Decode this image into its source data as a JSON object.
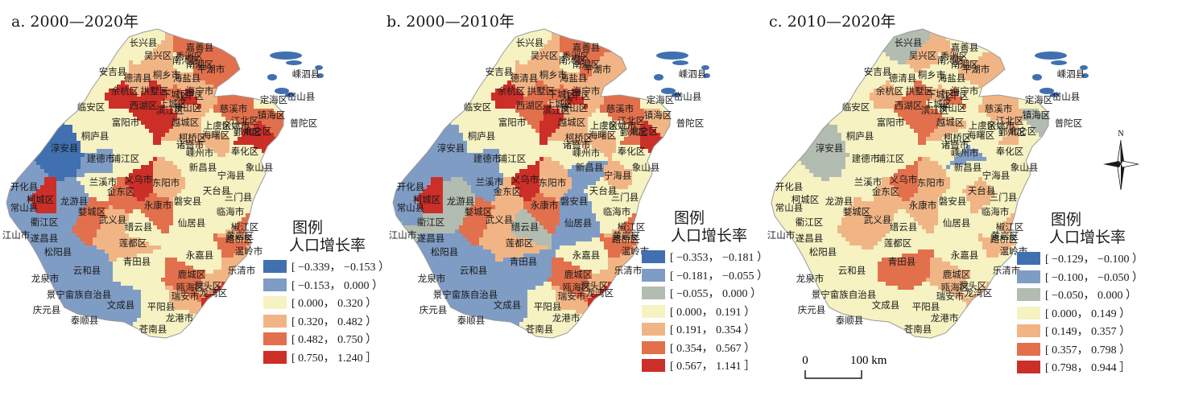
{
  "panels": [
    {
      "id": "a",
      "title": "a. 2000—2020年",
      "legend": {
        "title": "图例",
        "subtitle": "人口增长率",
        "classes": [
          {
            "range": "[ −0.339， −0.153 ）",
            "color": "#4070b0"
          },
          {
            "range": "[ −0.153， 0.000 ）",
            "color": "#7f9cc4"
          },
          {
            "range": "[ 0.000， 0.320 ）",
            "color": "#f6f2c2"
          },
          {
            "range": "[ 0.320， 0.482 ）",
            "color": "#f1b585"
          },
          {
            "range": "[ 0.482， 0.750 ）",
            "color": "#e2704c"
          },
          {
            "range": "[ 0.750， 1.240 ］",
            "color": "#cc2e28"
          }
        ]
      }
    },
    {
      "id": "b",
      "title": "b. 2000—2010年",
      "legend": {
        "title": "图例",
        "subtitle": "人口增长率",
        "classes": [
          {
            "range": "[ −0.353， −0.181 ）",
            "color": "#4070b0"
          },
          {
            "range": "[ −0.181， −0.055 ）",
            "color": "#7f9cc4"
          },
          {
            "range": "[ −0.055， 0.000 ）",
            "color": "#b3bcb0"
          },
          {
            "range": "[ 0.000， 0.191 ）",
            "color": "#f6f2c2"
          },
          {
            "range": "[ 0.191， 0.354 ）",
            "color": "#f1b585"
          },
          {
            "range": "[ 0.354， 0.567 ）",
            "color": "#e2704c"
          },
          {
            "range": "[ 0.567， 1.141 ］",
            "color": "#cc2e28"
          }
        ]
      }
    },
    {
      "id": "c",
      "title": "c. 2010—2020年",
      "legend": {
        "title": "图例",
        "subtitle": "人口增长率",
        "classes": [
          {
            "range": "[ −0.129， −0.100 ）",
            "color": "#4070b0"
          },
          {
            "range": "[ −0.100， −0.050 ）",
            "color": "#7f9cc4"
          },
          {
            "range": "[ −0.050， 0.000 ）",
            "color": "#b3bcb0"
          },
          {
            "range": "[ 0.000， 0.149 ）",
            "color": "#f6f2c2"
          },
          {
            "range": "[ 0.149， 0.357 ）",
            "color": "#f1b585"
          },
          {
            "range": "[ 0.357， 0.798 ）",
            "color": "#e2704c"
          },
          {
            "range": "[ 0.798， 0.944 ］",
            "color": "#cc2e28"
          }
        ]
      }
    }
  ],
  "counties": [
    {
      "name": "长兴县",
      "a": 2,
      "b": 3,
      "c": 2
    },
    {
      "name": "嘉善县",
      "a": 4,
      "b": 5,
      "c": 3
    },
    {
      "name": "吴兴区",
      "a": 3,
      "b": 4,
      "c": 4
    },
    {
      "name": "南浔区",
      "a": 2,
      "b": 3,
      "c": 3
    },
    {
      "name": "秀洲区",
      "a": 4,
      "b": 5,
      "c": 4
    },
    {
      "name": "安吉县",
      "a": 2,
      "b": 3,
      "c": 3
    },
    {
      "name": "南湖区",
      "a": 4,
      "b": 5,
      "c": 4
    },
    {
      "name": "海盐县",
      "a": 3,
      "b": 4,
      "c": 3
    },
    {
      "name": "德清县",
      "a": 3,
      "b": 4,
      "c": 3
    },
    {
      "name": "桐乡市",
      "a": 3,
      "b": 4,
      "c": 3
    },
    {
      "name": "平湖市",
      "a": 4,
      "b": 4,
      "c": 4
    },
    {
      "name": "余杭区",
      "a": 5,
      "b": 6,
      "c": 4
    },
    {
      "name": "拱墅区",
      "a": 5,
      "b": 5,
      "c": 5
    },
    {
      "name": "海宁市",
      "a": 3,
      "b": 4,
      "c": 3
    },
    {
      "name": "下城区",
      "a": 4,
      "b": 5,
      "c": 4
    },
    {
      "name": "江干区",
      "a": 5,
      "b": 6,
      "c": 5
    },
    {
      "name": "临安区",
      "a": 2,
      "b": 3,
      "c": 3
    },
    {
      "name": "西湖区",
      "a": 5,
      "b": 5,
      "c": 5
    },
    {
      "name": "上城区",
      "a": 3,
      "b": 4,
      "c": 3
    },
    {
      "name": "滨江区",
      "a": 5,
      "b": 6,
      "c": 5
    },
    {
      "name": "萧山区",
      "a": 3,
      "b": 4,
      "c": 3
    },
    {
      "name": "富阳市",
      "a": 2,
      "b": 3,
      "c": 3
    },
    {
      "name": "越城区",
      "a": 3,
      "b": 4,
      "c": 4
    },
    {
      "name": "上虞区",
      "a": 2,
      "b": 3,
      "c": 3
    },
    {
      "name": "余姚市",
      "a": 2,
      "b": 3,
      "c": 3
    },
    {
      "name": "慈溪市",
      "a": 4,
      "b": 5,
      "c": 4
    },
    {
      "name": "江北区",
      "a": 4,
      "b": 5,
      "c": 4
    },
    {
      "name": "镇海区",
      "a": 4,
      "b": 4,
      "c": 2
    },
    {
      "name": "北仑区",
      "a": 5,
      "b": 6,
      "c": 3
    },
    {
      "name": "海曙区",
      "a": 3,
      "b": 4,
      "c": 3
    },
    {
      "name": "鄞州区",
      "a": 5,
      "b": 5,
      "c": 4
    },
    {
      "name": "定海区",
      "a": 2,
      "b": 3,
      "c": 3
    },
    {
      "name": "普陀区",
      "a": 2,
      "b": 3,
      "c": 3
    },
    {
      "name": "嵊泗县",
      "a": 2,
      "b": 3,
      "c": 3
    },
    {
      "name": "岱山县",
      "a": 2,
      "b": 3,
      "c": 3
    },
    {
      "name": "桐庐县",
      "a": 2,
      "b": 3,
      "c": 3
    },
    {
      "name": "柯桥区",
      "a": 3,
      "b": 4,
      "c": 3
    },
    {
      "name": "诸暨市",
      "a": 2,
      "b": 3,
      "c": 3
    },
    {
      "name": "嵊州市",
      "a": 2,
      "b": 3,
      "c": 1
    },
    {
      "name": "奉化区",
      "a": 2,
      "b": 3,
      "c": 3
    },
    {
      "name": "淳安县",
      "a": 0,
      "b": 1,
      "c": 2
    },
    {
      "name": "建德市",
      "a": 1,
      "b": 1,
      "c": 3
    },
    {
      "name": "浦江区",
      "a": 2,
      "b": 3,
      "c": 3
    },
    {
      "name": "新昌县",
      "a": 2,
      "b": 1,
      "c": 3
    },
    {
      "name": "象山县",
      "a": 2,
      "b": 3,
      "c": 3
    },
    {
      "name": "宁海县",
      "a": 2,
      "b": 4,
      "c": 3
    },
    {
      "name": "兰溪市",
      "a": 2,
      "b": 1,
      "c": 3
    },
    {
      "name": "义乌市",
      "a": 5,
      "b": 6,
      "c": 5
    },
    {
      "name": "东阳市",
      "a": 3,
      "b": 4,
      "c": 4
    },
    {
      "name": "开化县",
      "a": 1,
      "b": 1,
      "c": 3
    },
    {
      "name": "金东区",
      "a": 4,
      "b": 4,
      "c": 4
    },
    {
      "name": "天台县",
      "a": 2,
      "b": 3,
      "c": 4
    },
    {
      "name": "柯城区",
      "a": 5,
      "b": 6,
      "c": 3
    },
    {
      "name": "龙游县",
      "a": 1,
      "b": 2,
      "c": 3
    },
    {
      "name": "磐安县",
      "a": 2,
      "b": 1,
      "c": 3
    },
    {
      "name": "三门县",
      "a": 2,
      "b": 3,
      "c": 3
    },
    {
      "name": "常山县",
      "a": 1,
      "b": 1,
      "c": 3
    },
    {
      "name": "婺城区",
      "a": 4,
      "b": 5,
      "c": 4
    },
    {
      "name": "永康市",
      "a": 4,
      "b": 5,
      "c": 4
    },
    {
      "name": "临海市",
      "a": 2,
      "b": 3,
      "c": 3
    },
    {
      "name": "衢江区",
      "a": 1,
      "b": 2,
      "c": 3
    },
    {
      "name": "武义县",
      "a": 3,
      "b": 4,
      "c": 4
    },
    {
      "name": "仙居县",
      "a": 2,
      "b": 1,
      "c": 3
    },
    {
      "name": "椒江区",
      "a": 4,
      "b": 5,
      "c": 4
    },
    {
      "name": "江山市",
      "a": 1,
      "b": 2,
      "c": 3
    },
    {
      "name": "缙云县",
      "a": 2,
      "b": 2,
      "c": 3
    },
    {
      "name": "黄岩区",
      "a": 3,
      "b": 4,
      "c": 3
    },
    {
      "name": "路桥区",
      "a": 4,
      "b": 5,
      "c": 4
    },
    {
      "name": "遂昌县",
      "a": 1,
      "b": 1,
      "c": 3
    },
    {
      "name": "莲都区",
      "a": 3,
      "b": 4,
      "c": 3
    },
    {
      "name": "温岭市",
      "a": 3,
      "b": 4,
      "c": 3
    },
    {
      "name": "松阳县",
      "a": 1,
      "b": 1,
      "c": 3
    },
    {
      "name": "永嘉县",
      "a": 2,
      "b": 3,
      "c": 3
    },
    {
      "name": "青田县",
      "a": 2,
      "b": 1,
      "c": 5
    },
    {
      "name": "乐清市",
      "a": 3,
      "b": 4,
      "c": 3
    },
    {
      "name": "龙泉市",
      "a": 1,
      "b": 1,
      "c": 3
    },
    {
      "name": "云和县",
      "a": 1,
      "b": 1,
      "c": 3
    },
    {
      "name": "鹿城区",
      "a": 4,
      "b": 5,
      "c": 4
    },
    {
      "name": "瓯海区",
      "a": 4,
      "b": 5,
      "c": 4
    },
    {
      "name": "洞头区",
      "a": 3,
      "b": 4,
      "c": 3
    },
    {
      "name": "景宁畲族自治县",
      "a": 1,
      "b": 1,
      "c": 3
    },
    {
      "name": "瑞安市",
      "a": 3,
      "b": 4,
      "c": 3
    },
    {
      "name": "龙湾区",
      "a": 5,
      "b": 6,
      "c": 4
    },
    {
      "name": "文成县",
      "a": 1,
      "b": 1,
      "c": 3
    },
    {
      "name": "庆元县",
      "a": 0,
      "b": 0,
      "c": 3
    },
    {
      "name": "平阳县",
      "a": 2,
      "b": 3,
      "c": 3
    },
    {
      "name": "泰顺县",
      "a": 1,
      "b": 1,
      "c": 3
    },
    {
      "name": "龙港市",
      "a": 2,
      "b": 3,
      "c": 3
    },
    {
      "name": "苍南县",
      "a": 2,
      "b": 3,
      "c": 3
    }
  ],
  "north_label": "N",
  "scale": {
    "zero": "0",
    "end": "100 km"
  }
}
